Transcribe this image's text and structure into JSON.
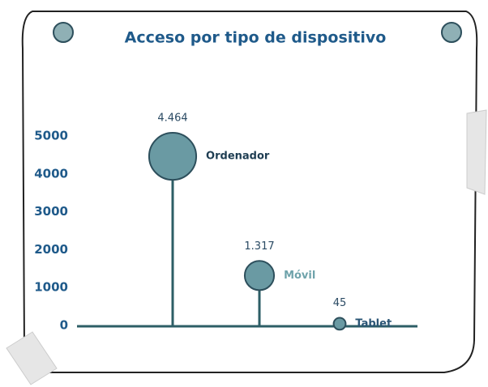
{
  "chart_data": {
    "type": "lollipop",
    "title": "Acceso por tipo de dispositivo",
    "categories": [
      "Ordenador",
      "Móvil",
      "Tablet"
    ],
    "values": [
      4464,
      1317,
      45
    ],
    "value_labels": [
      "4.464",
      "1.317",
      "45"
    ],
    "label_colors": [
      "#1e3d52",
      "#6fa3ab",
      "#2a5575"
    ],
    "color": "#6a9aa3",
    "ylim": [
      0,
      5000
    ],
    "yticks": [
      0,
      1000,
      2000,
      3000,
      4000,
      5000
    ]
  }
}
